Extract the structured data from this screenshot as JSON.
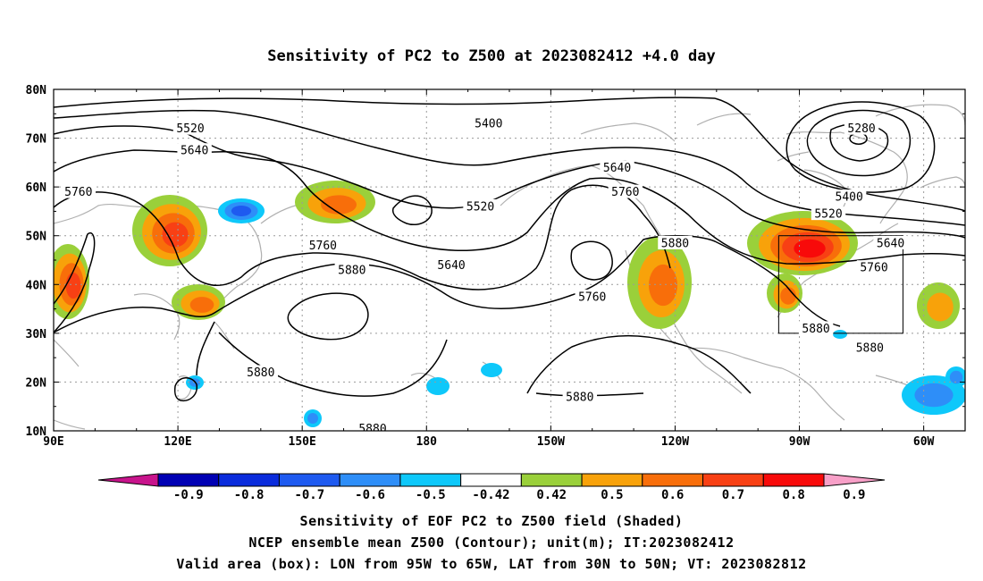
{
  "title": "Sensitivity of PC2 to Z500 at 2023082412 +4.0 day",
  "lat_labels": [
    "80N",
    "70N",
    "60N",
    "50N",
    "40N",
    "30N",
    "20N",
    "10N"
  ],
  "lon_labels": [
    "90E",
    "120E",
    "150E",
    "180",
    "150W",
    "120W",
    "90W",
    "60W"
  ],
  "contour_labels": [
    {
      "text": "5520",
      "lon": 123,
      "lat": 72
    },
    {
      "text": "5640",
      "lon": 124,
      "lat": 67.5
    },
    {
      "text": "5400",
      "lon": -165,
      "lat": 73
    },
    {
      "text": "5280",
      "lon": -75,
      "lat": 72
    },
    {
      "text": "5760",
      "lon": 96,
      "lat": 59
    },
    {
      "text": "5640",
      "lon": -134,
      "lat": 64
    },
    {
      "text": "5760",
      "lon": -132,
      "lat": 59
    },
    {
      "text": "5520",
      "lon": -167,
      "lat": 56
    },
    {
      "text": "5400",
      "lon": -78,
      "lat": 58
    },
    {
      "text": "5520",
      "lon": -83,
      "lat": 54.5
    },
    {
      "text": "5880",
      "lon": -120,
      "lat": 48.5
    },
    {
      "text": "5640",
      "lon": -174,
      "lat": 44
    },
    {
      "text": "5640",
      "lon": -68,
      "lat": 48.5
    },
    {
      "text": "5760",
      "lon": 155,
      "lat": 48
    },
    {
      "text": "5880",
      "lon": 162,
      "lat": 43
    },
    {
      "text": "5760",
      "lon": -72,
      "lat": 43.5
    },
    {
      "text": "5760",
      "lon": -140,
      "lat": 37.5
    },
    {
      "text": "5880",
      "lon": -86,
      "lat": 31
    },
    {
      "text": "5880",
      "lon": -73,
      "lat": 27
    },
    {
      "text": "5880",
      "lon": 140,
      "lat": 22
    },
    {
      "text": "5880",
      "lon": -143,
      "lat": 17
    },
    {
      "text": "5880",
      "lon": 167,
      "lat": 10.5
    }
  ],
  "colorbar": {
    "labels": [
      "-0.9",
      "-0.8",
      "-0.7",
      "-0.6",
      "-0.5",
      "-0.42",
      "0.42",
      "0.5",
      "0.6",
      "0.7",
      "0.8",
      "0.9"
    ],
    "colors": [
      "#0000b4",
      "#0a2cdc",
      "#1e5af0",
      "#2e8ef8",
      "#0ec8fa",
      "#ffffff",
      "#9ad03a",
      "#f8a20a",
      "#f86e0a",
      "#f84014",
      "#f80a0a"
    ],
    "low_end": "#c8148c",
    "high_end": "#f8a0c8"
  },
  "shade_legend": {
    "positive": [
      "#9ad03a",
      "#f8a20a",
      "#f86e0a",
      "#f84014",
      "#f80a0a"
    ],
    "negative": [
      "#0ec8fa",
      "#2e8ef8",
      "#1e5af0"
    ]
  },
  "valid_box": {
    "lon_min": -95,
    "lon_max": -65,
    "lat_min": 30,
    "lat_max": 50
  },
  "captions": [
    "Sensitivity of EOF PC2 to Z500 field (Shaded)",
    "NCEP ensemble mean Z500 (Contour); unit(m); IT:2023082412",
    "Valid area (box): LON from 95W to 65W, LAT from 30N to 50N; VT: 2023082812"
  ]
}
